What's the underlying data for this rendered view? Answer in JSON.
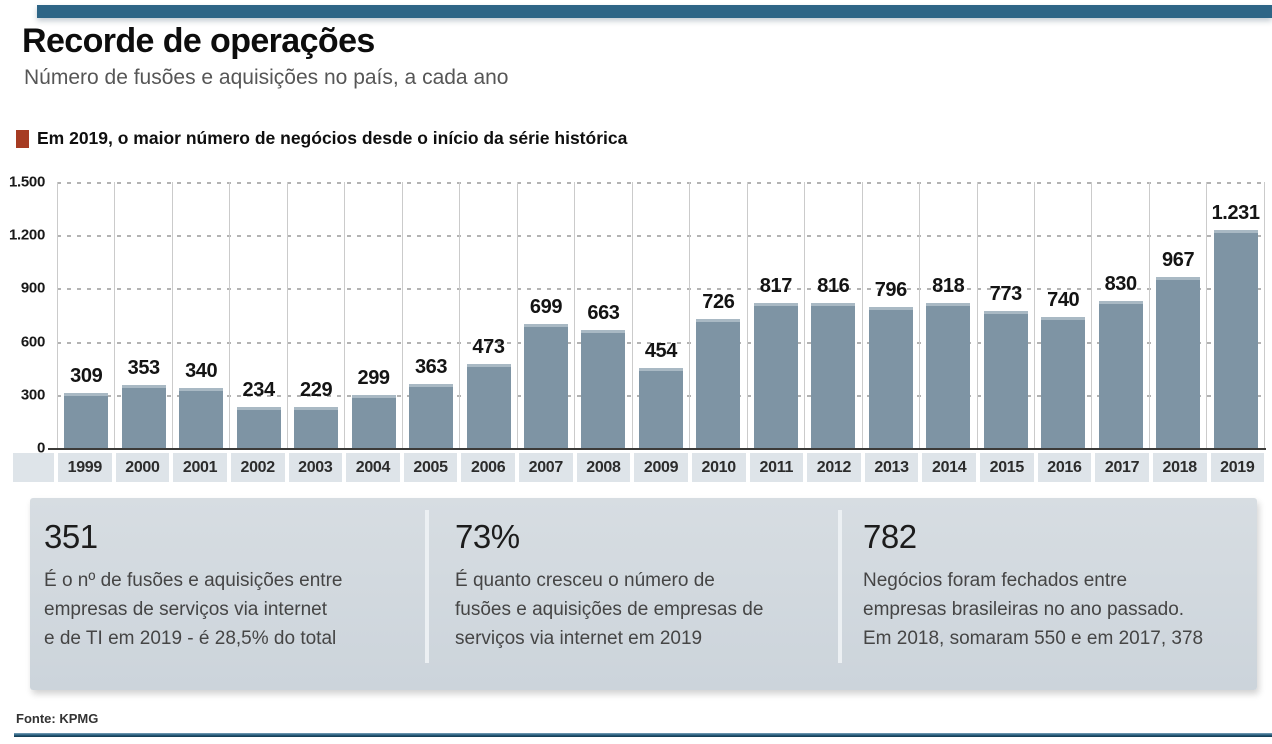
{
  "header": {
    "title": "Recorde de operações",
    "subtitle": "Número de fusões e aquisições no país, a cada ano"
  },
  "legend": {
    "label": "Em 2019, o maior número de negócios desde o início da série histórica",
    "marker_color": "#a63b22"
  },
  "chart_data": {
    "type": "bar",
    "title": "Recorde de operações",
    "subtitle": "Número de fusões e aquisições no país, a cada ano",
    "categories": [
      "1999",
      "2000",
      "2001",
      "2002",
      "2003",
      "2004",
      "2005",
      "2006",
      "2007",
      "2008",
      "2009",
      "2010",
      "2011",
      "2012",
      "2013",
      "2014",
      "2015",
      "2016",
      "2017",
      "2018",
      "2019"
    ],
    "values": [
      309,
      353,
      340,
      234,
      229,
      299,
      363,
      473,
      699,
      663,
      454,
      726,
      817,
      816,
      796,
      818,
      773,
      740,
      830,
      967,
      1231
    ],
    "value_labels": [
      "309",
      "353",
      "340",
      "234",
      "229",
      "299",
      "363",
      "473",
      "699",
      "663",
      "454",
      "726",
      "817",
      "816",
      "796",
      "818",
      "773",
      "740",
      "830",
      "967",
      "1.231"
    ],
    "xlabel": "",
    "ylabel": "",
    "ylim": [
      0,
      1500
    ],
    "ytick_labels": [
      "1.500",
      "1.200",
      "900",
      "600",
      "300",
      "0"
    ],
    "grid": "horizontal dashed lines + vertical solid column separators",
    "legend_position": "above chart",
    "bar_color": "#7e94a4"
  },
  "stats": {
    "items": [
      {
        "value": "351",
        "lines": [
          "É o nº de fusões e aquisições entre",
          "empresas de serviços via internet",
          "e de TI em 2019 - é 28,5% do total"
        ]
      },
      {
        "value": "73%",
        "lines": [
          "É quanto cresceu o número de",
          "fusões e aquisições de empresas de",
          "serviços via internet em 2019"
        ]
      },
      {
        "value": "782",
        "lines": [
          "Negócios foram fechados entre",
          "empresas brasileiras no ano passado.",
          "Em 2018, somaram 550 e em 2017, 378"
        ]
      }
    ]
  },
  "footer": {
    "source": "Fonte: KPMG"
  },
  "colors": {
    "accent_bar": "#2e6586",
    "highlight_red": "#a63b22",
    "bar_fill": "#7e94a4",
    "bar_cap": "#a9b9c4",
    "stats_bg": "#d1d8df",
    "axis_band": "#dee4e9"
  }
}
